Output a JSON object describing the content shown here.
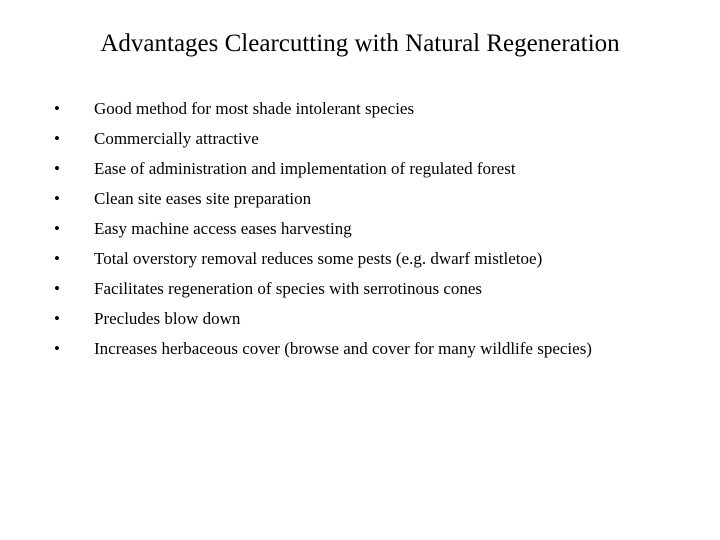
{
  "title": "Advantages Clearcutting with Natural Regeneration",
  "bullets": {
    "b0": "Good method for most shade intolerant species",
    "b1": "Commercially attractive",
    "b2": "Ease of administration and implementation of regulated forest",
    "b3": "Clean site eases site preparation",
    "b4": "Easy machine access eases harvesting",
    "b5": "Total overstory removal reduces some pests (e.g. dwarf mistletoe)",
    "b6": "Facilitates regeneration of species with serrotinous cones",
    "b7": "Precludes blow down",
    "b8": "Increases herbaceous cover (browse and cover for many wildlife species)"
  },
  "colors": {
    "background": "#ffffff",
    "text": "#000000"
  },
  "typography": {
    "title_fontsize": 25,
    "body_fontsize": 17,
    "font_family": "Times New Roman"
  }
}
